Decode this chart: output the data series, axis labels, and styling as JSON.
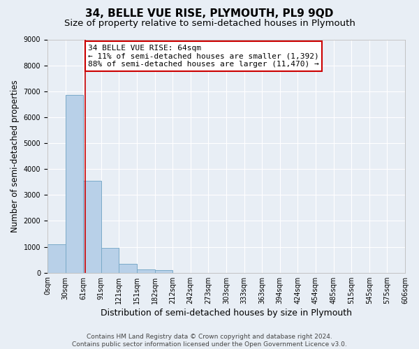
{
  "title": "34, BELLE VUE RISE, PLYMOUTH, PL9 9QD",
  "subtitle": "Size of property relative to semi-detached houses in Plymouth",
  "xlabel": "Distribution of semi-detached houses by size in Plymouth",
  "ylabel": "Number of semi-detached properties",
  "bin_labels": [
    "0sqm",
    "30sqm",
    "61sqm",
    "91sqm",
    "121sqm",
    "151sqm",
    "182sqm",
    "212sqm",
    "242sqm",
    "273sqm",
    "303sqm",
    "333sqm",
    "363sqm",
    "394sqm",
    "424sqm",
    "454sqm",
    "485sqm",
    "515sqm",
    "545sqm",
    "575sqm",
    "606sqm"
  ],
  "counts": [
    1100,
    6850,
    3550,
    970,
    340,
    130,
    95,
    0,
    0,
    0,
    0,
    0,
    0,
    0,
    0,
    0,
    0,
    0,
    0,
    0
  ],
  "bar_color": "#b8d0e8",
  "bar_edge_color": "#7aaac8",
  "property_line_bin": 2.13,
  "property_line_color": "#cc0000",
  "annotation_line1": "34 BELLE VUE RISE: 64sqm",
  "annotation_line2": "← 11% of semi-detached houses are smaller (1,392)",
  "annotation_line3": "88% of semi-detached houses are larger (11,470) →",
  "annotation_box_color": "#ffffff",
  "annotation_box_edge_color": "#cc0000",
  "ylim": [
    0,
    9000
  ],
  "yticks": [
    0,
    1000,
    2000,
    3000,
    4000,
    5000,
    6000,
    7000,
    8000,
    9000
  ],
  "background_color": "#e8eef5",
  "grid_color": "#ffffff",
  "footer_text": "Contains HM Land Registry data © Crown copyright and database right 2024.\nContains public sector information licensed under the Open Government Licence v3.0.",
  "title_fontsize": 11,
  "subtitle_fontsize": 9.5,
  "xlabel_fontsize": 9,
  "ylabel_fontsize": 8.5,
  "tick_fontsize": 7,
  "annotation_fontsize": 8,
  "footer_fontsize": 6.5
}
